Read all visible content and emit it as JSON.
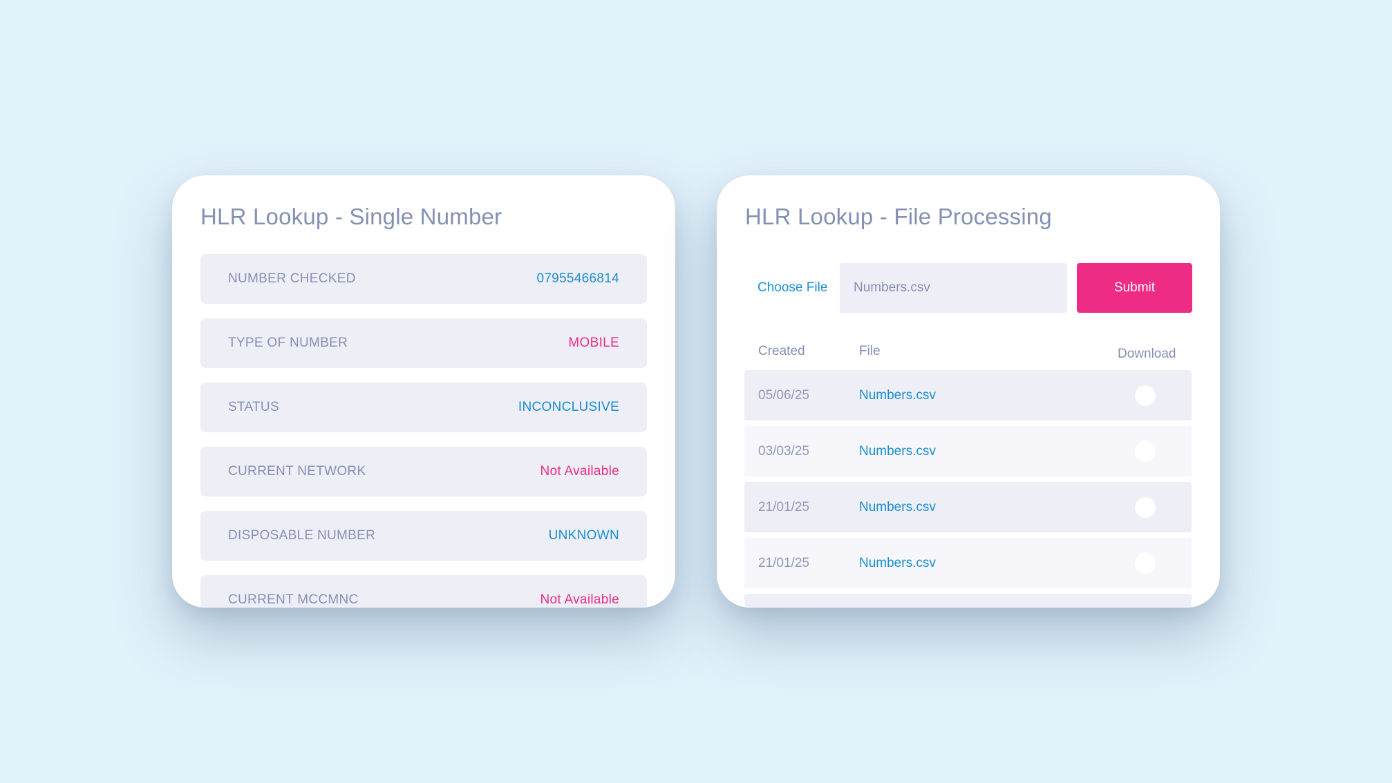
{
  "single": {
    "title": "HLR Lookup - Single Number",
    "rows": [
      {
        "label": "NUMBER CHECKED",
        "value": "07955466814",
        "color": "#1a8fd3"
      },
      {
        "label": "TYPE OF NUMBER",
        "value": "MOBILE",
        "color": "#ea2d86"
      },
      {
        "label": "STATUS",
        "value": "INCONCLUSIVE",
        "color": "#1a8fd3"
      },
      {
        "label": "CURRENT NETWORK",
        "value": "Not Available",
        "color": "#ea2d86"
      },
      {
        "label": "DISPOSABLE NUMBER",
        "value": "UNKNOWN",
        "color": "#1a8fd3"
      },
      {
        "label": "CURRENT MCCMNC",
        "value": "Not Available",
        "color": "#ea2d86"
      }
    ]
  },
  "file": {
    "title": "HLR Lookup - File Processing",
    "choose_label": "Choose File",
    "file_value": "Numbers.csv",
    "submit_label": "Submit",
    "columns": {
      "created": "Created",
      "file": "File",
      "download": "Download"
    },
    "rows": [
      {
        "created": "05/06/25",
        "file": "Numbers.csv"
      },
      {
        "created": "03/03/25",
        "file": "Numbers.csv"
      },
      {
        "created": "21/01/25",
        "file": "Numbers.csv"
      },
      {
        "created": "21/01/25",
        "file": "Numbers.csv"
      }
    ]
  },
  "colors": {
    "background": "#e2f2fb",
    "accent_pink": "#ee2c86",
    "accent_blue": "#1a8fd3",
    "label_gray": "#8590b4"
  }
}
